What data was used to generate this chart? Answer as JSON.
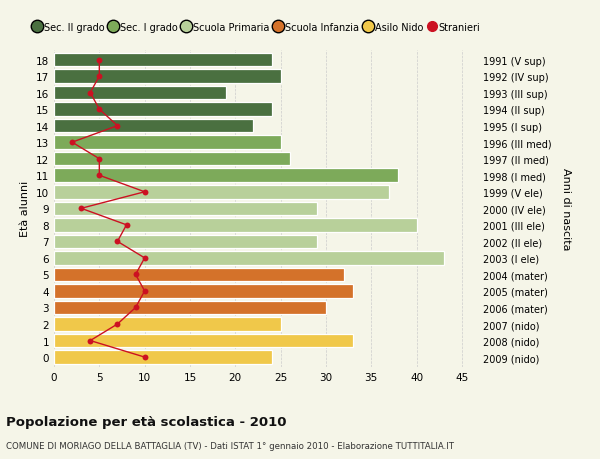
{
  "ages": [
    18,
    17,
    16,
    15,
    14,
    13,
    12,
    11,
    10,
    9,
    8,
    7,
    6,
    5,
    4,
    3,
    2,
    1,
    0
  ],
  "years": [
    "1991 (V sup)",
    "1992 (IV sup)",
    "1993 (III sup)",
    "1994 (II sup)",
    "1995 (I sup)",
    "1996 (III med)",
    "1997 (II med)",
    "1998 (I med)",
    "1999 (V ele)",
    "2000 (IV ele)",
    "2001 (III ele)",
    "2002 (II ele)",
    "2003 (I ele)",
    "2004 (mater)",
    "2005 (mater)",
    "2006 (mater)",
    "2007 (nido)",
    "2008 (nido)",
    "2009 (nido)"
  ],
  "bar_values": [
    24,
    25,
    19,
    24,
    22,
    25,
    26,
    38,
    37,
    29,
    40,
    29,
    43,
    32,
    33,
    30,
    25,
    33,
    24
  ],
  "bar_colors": [
    "#4a7040",
    "#4a7040",
    "#4a7040",
    "#4a7040",
    "#4a7040",
    "#7daa5a",
    "#7daa5a",
    "#7daa5a",
    "#b8d09a",
    "#b8d09a",
    "#b8d09a",
    "#b8d09a",
    "#b8d09a",
    "#d4722a",
    "#d4722a",
    "#d4722a",
    "#f0c84a",
    "#f0c84a",
    "#f0c84a"
  ],
  "stranieri_values": [
    5,
    5,
    4,
    5,
    7,
    2,
    5,
    5,
    10,
    3,
    8,
    7,
    10,
    9,
    10,
    9,
    7,
    4,
    10
  ],
  "ylabel_right": "Anni di nascita",
  "title_bold": "Popolazione per eta scolastica - 2010",
  "subtitle": "COMUNE DI MORIAGO DELLA BATTAGLIA (TV) - Dati ISTAT 1° gennaio 2010 - Elaborazione TUTTITALIA.IT",
  "xlim": [
    0,
    47
  ],
  "legend_labels": [
    "Sec. II grado",
    "Sec. I grado",
    "Scuola Primaria",
    "Scuola Infanzia",
    "Asilo Nido",
    "Stranieri"
  ],
  "legend_colors": [
    "#4a7040",
    "#7daa5a",
    "#b8d09a",
    "#d4722a",
    "#f0c84a",
    "#cc1122"
  ],
  "stranieri_color": "#cc1122",
  "grid_color": "#cccccc",
  "bg_color": "#f5f5e8"
}
